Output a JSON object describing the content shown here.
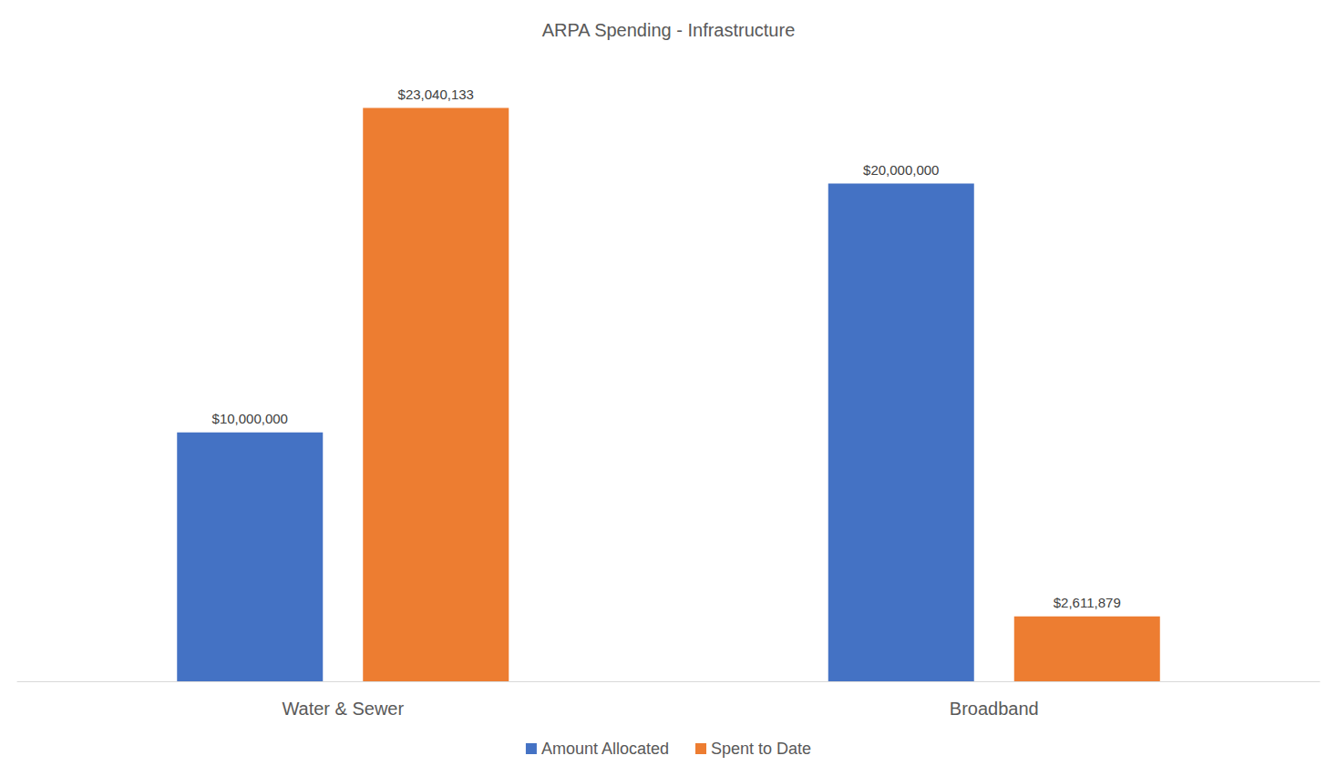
{
  "chart_data": {
    "type": "bar",
    "title": "ARPA Spending - Infrastructure",
    "categories": [
      "Water & Sewer",
      "Broadband"
    ],
    "series": [
      {
        "name": "Amount Allocated",
        "color": "#4472c4",
        "values": [
          10000000,
          20000000
        ],
        "value_labels": [
          "$10,000,000",
          "$20,000,000"
        ]
      },
      {
        "name": "Spent to Date",
        "color": "#ed7d31",
        "values": [
          23040133,
          2611879
        ],
        "value_labels": [
          "$23,040,133",
          "$2,611,879"
        ]
      }
    ],
    "ylim": [
      0,
      25000000
    ],
    "yticks": [
      0,
      5000000,
      10000000,
      15000000,
      20000000,
      25000000
    ],
    "grid": false,
    "legend": "bottom",
    "data_labels": true,
    "tick_labels": "x"
  }
}
